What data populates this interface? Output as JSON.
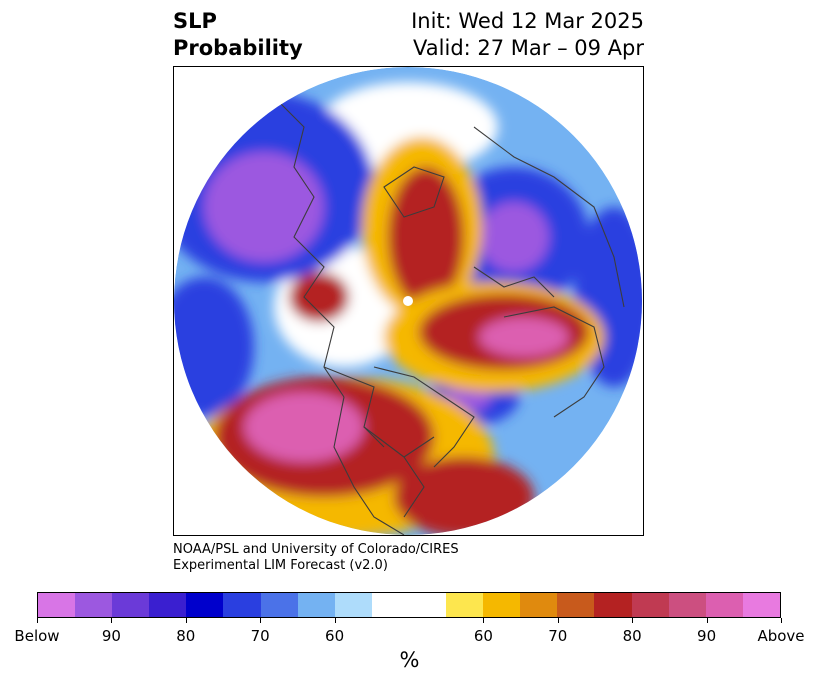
{
  "title": {
    "left_line1": "SLP",
    "left_line2": "Probability",
    "right_line1": "Init: Wed 12 Mar 2025",
    "right_line2": "Valid: 27 Mar – 09 Apr"
  },
  "credit": {
    "line1": "NOAA/PSL and University of Colorado/CIRES",
    "line2": "Experimental LIM Forecast (v2.0)"
  },
  "colorbar": {
    "colors": [
      "#d875e6",
      "#9c58e0",
      "#6b3ad8",
      "#3a1fd0",
      "#0000cc",
      "#2a3fe0",
      "#4b72e8",
      "#74b2f2",
      "#aedcfb",
      "#ffffff",
      "#ffffff",
      "#fde64e",
      "#f5b800",
      "#e08a0e",
      "#c85a1c",
      "#b42222",
      "#c03a52",
      "#cc4f80",
      "#dc5fb0",
      "#e87ae0"
    ],
    "tick_labels": [
      "Below",
      "90",
      "80",
      "70",
      "60",
      "60",
      "70",
      "80",
      "90",
      "Above"
    ],
    "unit": "%"
  },
  "map": {
    "projection": "north polar stereographic",
    "colors": {
      "below_strong": "#9c58e0",
      "below_mid": "#2a3fe0",
      "below_light": "#74b2f2",
      "below_faint": "#aedcfb",
      "above_faint": "#fde64e",
      "above_light": "#f5b800",
      "above_mid": "#b42222",
      "above_strong": "#dc5fb0",
      "coast": "#3c3c3c"
    }
  }
}
